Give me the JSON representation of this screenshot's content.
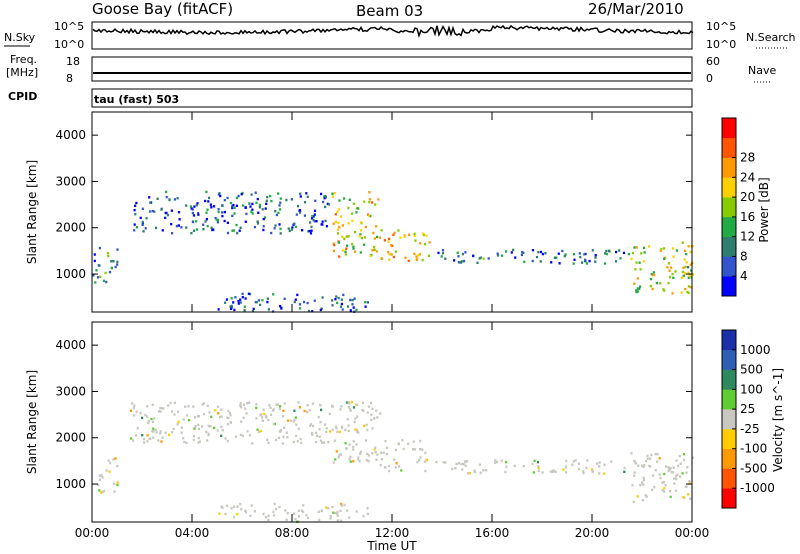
{
  "header": {
    "station": "Goose Bay (fitACF)",
    "beam": "Beam 03",
    "date": "26/Mar/2010"
  },
  "panels": {
    "nsky": {
      "label": "N.Sky",
      "ticks": [
        "10^5",
        "10^0"
      ]
    },
    "nsearch": {
      "label": "N.Search",
      "ticks": [
        "10^5",
        "10^0"
      ]
    },
    "freq": {
      "label_1": "Freq.",
      "label_2": "[MHz]",
      "ticks": [
        "18",
        "8"
      ]
    },
    "nave": {
      "label": "Nave",
      "ticks": [
        "60",
        "0"
      ]
    },
    "cpid": {
      "label": "CPID",
      "value": "tau (fast) 503"
    }
  },
  "colors": {
    "power": [
      "#0000ff",
      "#3355cc",
      "#2e7d6e",
      "#22aa44",
      "#88cc00",
      "#ffd000",
      "#ff9900",
      "#ff5500",
      "#ff0000"
    ],
    "velocity": [
      "#1a2fa8",
      "#2f5fb5",
      "#2e8a5e",
      "#5fcc33",
      "#c8c8c0",
      "#ffcc00",
      "#ff9900",
      "#ff5500",
      "#ff0000"
    ],
    "ground_scatter": "#c0c0b8"
  },
  "chart_data": [
    {
      "type": "heatmap",
      "name": "power",
      "xlabel": "",
      "ylabel": "Slant Range [km]",
      "xlim": [
        0,
        24
      ],
      "ylim": [
        180,
        4500
      ],
      "yticks": [
        "1000",
        "2000",
        "3000",
        "4000"
      ],
      "colorbar_label": "Power [dB]",
      "colorbar_ticks": [
        "4",
        "8",
        "12",
        "16",
        "20",
        "24",
        "28"
      ],
      "scatter_regions": [
        {
          "t0": 0.0,
          "t1": 1.0,
          "r0": 800,
          "r1": 1600,
          "level": 0.25
        },
        {
          "t0": 1.5,
          "t1": 9.5,
          "r0": 1900,
          "r1": 2800,
          "level": 0.15
        },
        {
          "t0": 9.5,
          "t1": 11.5,
          "r0": 1400,
          "r1": 2800,
          "level": 0.6
        },
        {
          "t0": 11.5,
          "t1": 13.5,
          "r0": 1300,
          "r1": 2000,
          "level": 0.7
        },
        {
          "t0": 13.5,
          "t1": 21.5,
          "r0": 1250,
          "r1": 1550,
          "level": 0.2
        },
        {
          "t0": 21.5,
          "t1": 24.0,
          "r0": 600,
          "r1": 1700,
          "level": 0.55
        },
        {
          "t0": 5.0,
          "t1": 11.0,
          "r0": 200,
          "r1": 600,
          "level": 0.15
        }
      ]
    },
    {
      "type": "heatmap",
      "name": "velocity",
      "xlabel": "Time UT",
      "ylabel": "Slant Range [km]",
      "xlim": [
        0,
        24
      ],
      "ylim": [
        180,
        4500
      ],
      "yticks": [
        "1000",
        "2000",
        "3000",
        "4000"
      ],
      "xticks": [
        "00:00",
        "04:00",
        "08:00",
        "12:00",
        "16:00",
        "20:00",
        "00:00"
      ],
      "colorbar_label": "Velocity [m s^-1]",
      "colorbar_ticks": [
        "1000",
        "500",
        "100",
        "25",
        "-25",
        "-100",
        "-500",
        "-1000"
      ],
      "scatter_regions": [
        {
          "t0": 0.0,
          "t1": 1.0,
          "r0": 800,
          "r1": 1600,
          "level": 0.5
        },
        {
          "t0": 1.5,
          "t1": 9.5,
          "r0": 1900,
          "r1": 2800,
          "level": 0.5
        },
        {
          "t0": 9.5,
          "t1": 11.5,
          "r0": 1400,
          "r1": 2800,
          "level": 0.5
        },
        {
          "t0": 11.5,
          "t1": 13.5,
          "r0": 1300,
          "r1": 2000,
          "level": 0.5
        },
        {
          "t0": 13.5,
          "t1": 21.5,
          "r0": 1250,
          "r1": 1550,
          "level": 0.5
        },
        {
          "t0": 21.5,
          "t1": 24.0,
          "r0": 600,
          "r1": 1700,
          "level": 0.6
        },
        {
          "t0": 5.0,
          "t1": 11.0,
          "r0": 200,
          "r1": 600,
          "level": 0.5
        }
      ]
    }
  ]
}
